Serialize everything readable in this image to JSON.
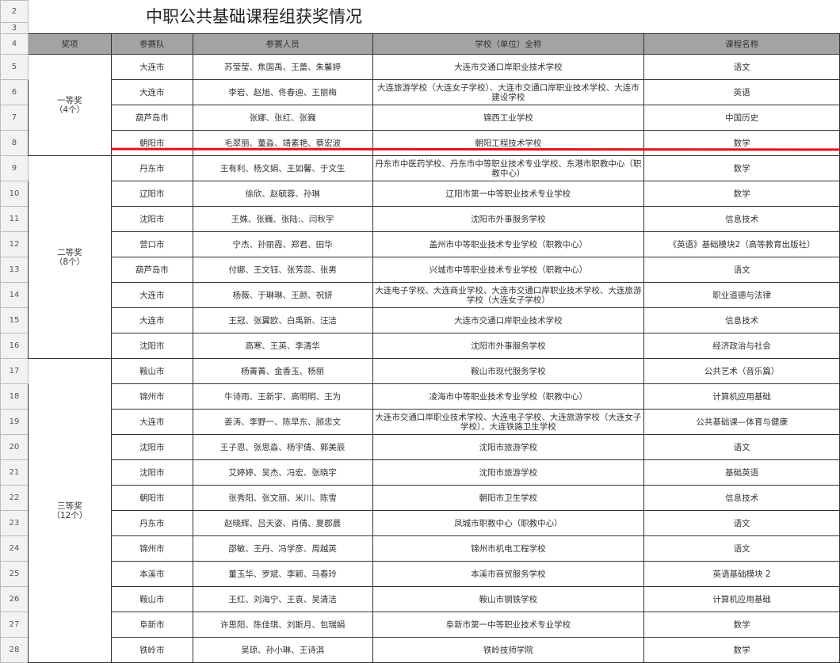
{
  "title": "中职公共基础课程组获奖情况",
  "row_numbers": [
    "2",
    "3",
    "4"
  ],
  "headers": {
    "award": "奖项",
    "team": "参赛队",
    "members": "参赛人员",
    "school": "学校（单位）全称",
    "course": "课程名称"
  },
  "groups": [
    {
      "award": "一等奖\n（4个）",
      "rows": [
        {
          "n": "5",
          "team": "大连市",
          "members": "苏莹莹、焦国禹、王蕾、朱馨婷",
          "school": "大连市交通口岸职业技术学校",
          "course": "语文"
        },
        {
          "n": "6",
          "team": "大连市",
          "members": "李岩、赵旭、佟春迪、王丽梅",
          "school": "大连旅游学校（大连女子学校）、大连市交通口岸职业技术学校、大连市建设学校",
          "course": "英语"
        },
        {
          "n": "7",
          "team": "葫芦岛市",
          "members": "张娜、张红、张巍",
          "school": "锦西工业学校",
          "course": "中国历史"
        },
        {
          "n": "8",
          "team": "朝阳市",
          "members": "毛翠丽、董淼、靖素艳、蔡宏波",
          "school": "朝阳工程技术学校",
          "course": "数学"
        }
      ]
    },
    {
      "award": "二等奖\n（8个）",
      "rows": [
        {
          "n": "9",
          "team": "丹东市",
          "members": "王有利、杨文娟、王如馨、于文生",
          "school": "丹东市中医药学校、丹东市中等职业技术专业学校、东港市职教中心（职教中心）",
          "course": "数学"
        },
        {
          "n": "10",
          "team": "辽阳市",
          "members": "徐欣、赵毓蓉、孙琳",
          "school": "辽阳市第一中等职业技术专业学校",
          "course": "数学"
        },
        {
          "n": "11",
          "team": "沈阳市",
          "members": "王姝、张巍、张陆:、闫秋宇",
          "school": "沈阳市外事服务学校",
          "course": "信息技术"
        },
        {
          "n": "12",
          "team": "营口市",
          "members": "宁杰、孙丽霞、郑君、田华",
          "school": "盖州市中等职业技术专业学校（职教中心）",
          "course": "《英语》基础模块2（高等教育出版社）"
        },
        {
          "n": "13",
          "team": "葫芦岛市",
          "members": "付娜、王文钰、张芳蕊、张男",
          "school": "兴城市中等职业技术专业学校（职教中心）",
          "course": "语文"
        },
        {
          "n": "14",
          "team": "大连市",
          "members": "杨薇、于琳琳、王颜、祝妍",
          "school": "大连电子学校、大连商业学校、大连市交通口岸职业技术学校、大连旅游学校（大连女子学校）",
          "course": "职业道德与法律"
        },
        {
          "n": "15",
          "team": "大连市",
          "members": "王冠、张翼欧、白禹新、汪洁",
          "school": "大连市交通口岸职业技术学校",
          "course": "信息技术"
        },
        {
          "n": "16",
          "team": "沈阳市",
          "members": "高寒、王英、李清华",
          "school": "沈阳市外事服务学校",
          "course": "经济政治与社会"
        }
      ]
    },
    {
      "award": "三等奖\n（12个）",
      "rows": [
        {
          "n": "17",
          "team": "鞍山市",
          "members": "杨菁菁、金香玉、杨丽",
          "school": "鞍山市现代服务学校",
          "course": "公共艺术（音乐篇）"
        },
        {
          "n": "18",
          "team": "锦州市",
          "members": "牛诗雨、王新宇、高明明、王为",
          "school": "凌海市中等职业技术专业学校（职教中心）",
          "course": "计算机应用基础"
        },
        {
          "n": "19",
          "team": "大连市",
          "members": "姜涛、李野一、陈早东、顾忠文",
          "school": "大连市交通口岸职业技术学校、大连电子学校、大连旅游学校（大连女子学校）、大连铁路卫生学校",
          "course": "公共基础课—体育与健康"
        },
        {
          "n": "20",
          "team": "沈阳市",
          "members": "王子恩、张思淼、杨宇倩、郭美辰",
          "school": "沈阳市旅游学校",
          "course": "语文"
        },
        {
          "n": "21",
          "team": "沈阳市",
          "members": "艾婷婷、吴杰、冯宏、张晓宇",
          "school": "沈阳市旅游学校",
          "course": "基础英语"
        },
        {
          "n": "22",
          "team": "朝阳市",
          "members": "张秀阳、张文丽、米川、陈雪",
          "school": "朝阳市卫生学校",
          "course": "信息技术"
        },
        {
          "n": "23",
          "team": "丹东市",
          "members": "赵晓辉、吕天姿、肖倩、夏郡晨",
          "school": "凤城市职教中心（职教中心）",
          "course": "语文"
        },
        {
          "n": "24",
          "team": "锦州市",
          "members": "邵敏、王丹、冯学彦、周越英",
          "school": "锦州市机电工程学校",
          "course": "语文"
        },
        {
          "n": "25",
          "team": "本溪市",
          "members": "董玉华、罗斌、李颖、马春玲",
          "school": "本溪市商贸服务学校",
          "course": "英语基础模块 2"
        },
        {
          "n": "26",
          "team": "鞍山市",
          "members": "王红、刘海宁、王袁、吴清洁",
          "school": "鞍山市钢铁学校",
          "course": "计算机应用基础"
        },
        {
          "n": "27",
          "team": "阜新市",
          "members": "许思阳、陈佳琪、刘斯月、包瑞娟",
          "school": "阜新市第一中等职业技术专业学校",
          "course": "数学"
        },
        {
          "n": "28",
          "team": "铁岭市",
          "members": "吴琼、孙小琳、王诗淇",
          "school": "铁岭技师学院",
          "course": "数学"
        }
      ]
    }
  ],
  "colors": {
    "header_bg": "#a3a3a3",
    "highlight_line": "#e8101a"
  }
}
